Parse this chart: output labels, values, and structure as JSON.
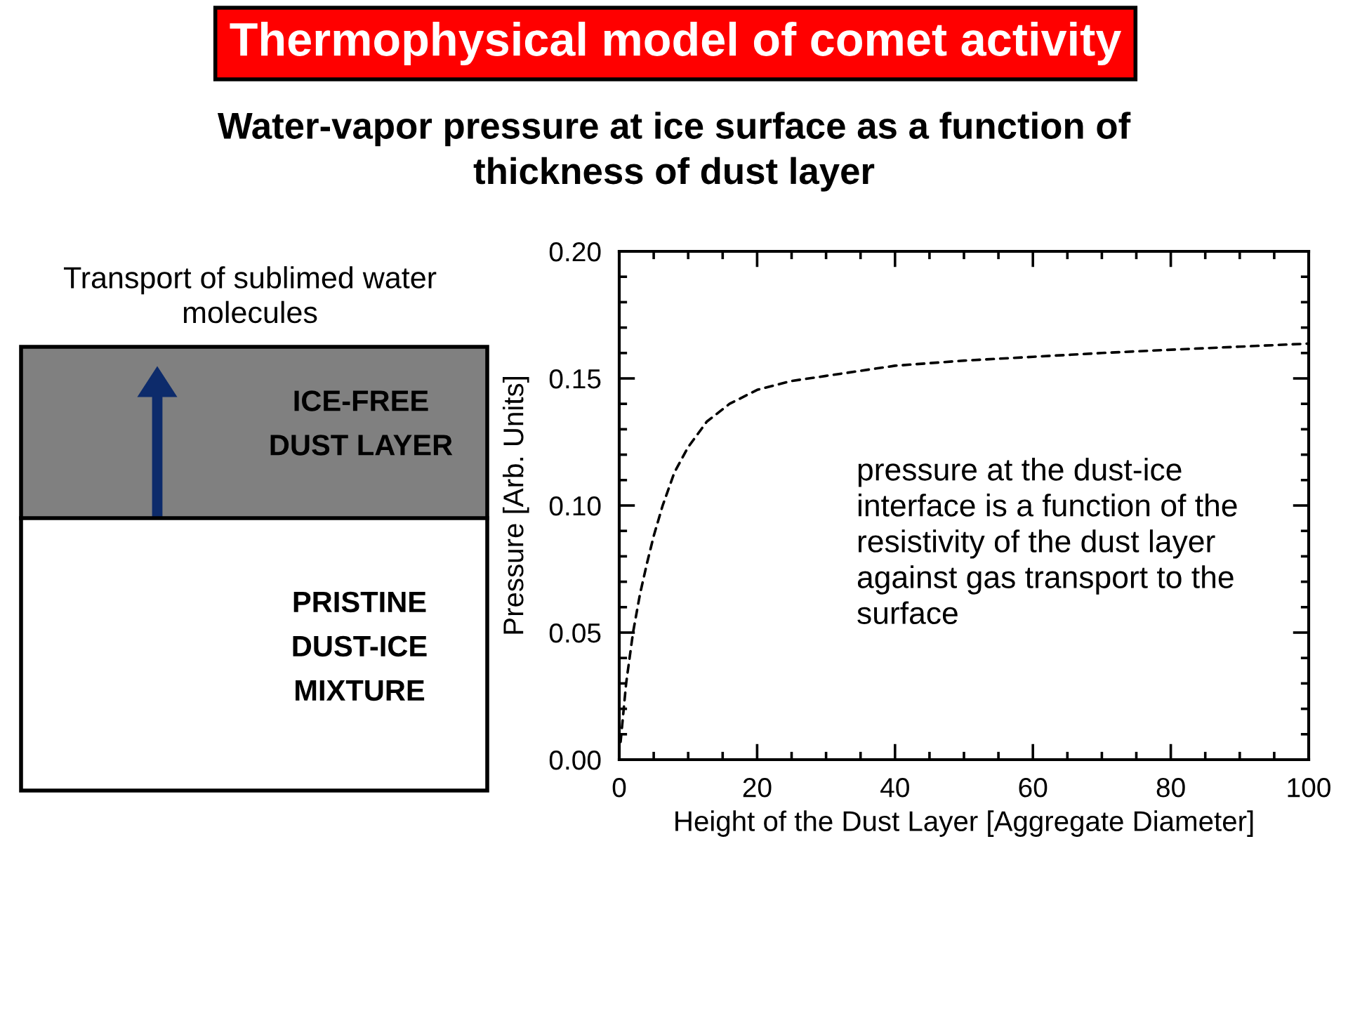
{
  "chart_data": {
    "type": "line",
    "title": "Thermophysical model of comet activity",
    "subtitle": "Water-vapor pressure at ice surface as a function of\nthickness of dust layer",
    "xlabel": "Height of the Dust Layer [Aggregate Diameter]",
    "ylabel": "Pressure [Arb. Units]",
    "line_style": "dashed",
    "series": [
      {
        "color": "#000000",
        "x": [
          0.2,
          1,
          2,
          3,
          4,
          5,
          6.3,
          8,
          10,
          12.7,
          16,
          20,
          25,
          30,
          35,
          40,
          50,
          60,
          70,
          80,
          90,
          100
        ],
        "values": [
          0.007,
          0.03,
          0.05,
          0.065,
          0.077,
          0.088,
          0.1,
          0.113,
          0.123,
          0.133,
          0.14,
          0.1455,
          0.149,
          0.151,
          0.153,
          0.155,
          0.157,
          0.1585,
          0.16,
          0.1613,
          0.1625,
          0.1637
        ]
      }
    ],
    "xlim": [
      0,
      100
    ],
    "ylim": [
      0,
      0.2
    ],
    "xticks": [
      0,
      {
        "value": 5,
        "label": null
      },
      {
        "value": 10,
        "label": null
      },
      {
        "value": 15,
        "label": null
      },
      20,
      {
        "value": 25,
        "label": null
      },
      {
        "value": 30,
        "label": null
      },
      {
        "value": 35,
        "label": null
      },
      40,
      {
        "value": 45,
        "label": null
      },
      {
        "value": 50,
        "label": null
      },
      {
        "value": 55,
        "label": null
      },
      60,
      {
        "value": 65,
        "label": null
      },
      {
        "value": 70,
        "label": null
      },
      {
        "value": 75,
        "label": null
      },
      80,
      {
        "value": 85,
        "label": null
      },
      {
        "value": 90,
        "label": null
      },
      {
        "value": 95,
        "label": null
      },
      100
    ],
    "yticks": [
      {
        "value": 0,
        "label": "0.00"
      },
      {
        "value": 0.01,
        "label": null
      },
      {
        "value": 0.02,
        "label": null
      },
      {
        "value": 0.03,
        "label": null
      },
      {
        "value": 0.04,
        "label": null
      },
      {
        "value": 0.05,
        "label": "0.05"
      },
      {
        "value": 0.06,
        "label": null
      },
      {
        "value": 0.07,
        "label": null
      },
      {
        "value": 0.08,
        "label": null
      },
      {
        "value": 0.09,
        "label": null
      },
      {
        "value": 0.1,
        "label": "0.10"
      },
      {
        "value": 0.11,
        "label": null
      },
      {
        "value": 0.12,
        "label": null
      },
      {
        "value": 0.13,
        "label": null
      },
      {
        "value": 0.14,
        "label": null
      },
      {
        "value": 0.15,
        "label": "0.15"
      },
      {
        "value": 0.16,
        "label": null
      },
      {
        "value": 0.17,
        "label": null
      },
      {
        "value": 0.18,
        "label": null
      },
      {
        "value": 0.19,
        "label": null
      },
      {
        "value": 0.2,
        "label": "0.20"
      }
    ],
    "annotations": [
      "pressure at the dust-ice\ninterface is a function of the\nresistivity of the dust layer\nagainst gas transport to the\nsurface",
      "Transport of sublimed water\nmolecules",
      "ICE-FREE\nDUST LAYER",
      "PRISTINE\nDUST-ICE\nMIXTURE"
    ]
  }
}
